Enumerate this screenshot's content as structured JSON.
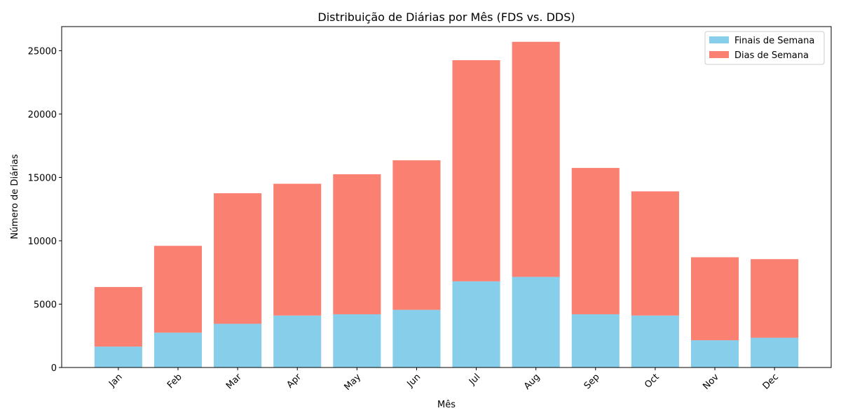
{
  "chart_data": {
    "type": "bar",
    "stacked": true,
    "title": "Distribuição de Diárias por Mês (FDS vs. DDS)",
    "xlabel": "Mês",
    "ylabel": "Número de Diárias",
    "categories": [
      "Jan",
      "Feb",
      "Mar",
      "Apr",
      "May",
      "Jun",
      "Jul",
      "Aug",
      "Sep",
      "Oct",
      "Nov",
      "Dec"
    ],
    "series": [
      {
        "name": "Finais de Semana",
        "color": "#87CEEB",
        "values": [
          1650,
          2750,
          3450,
          4100,
          4200,
          4550,
          6800,
          7150,
          4200,
          4100,
          2150,
          2350
        ]
      },
      {
        "name": "Dias de Semana",
        "color": "#FA8072",
        "values": [
          4700,
          6850,
          10300,
          10400,
          11050,
          11800,
          17450,
          18550,
          11550,
          9800,
          6550,
          6200
        ]
      }
    ],
    "ylim": [
      0,
      26900
    ],
    "yticks": [
      0,
      5000,
      10000,
      15000,
      20000,
      25000
    ],
    "grid": false,
    "legend_position": "top-right"
  }
}
